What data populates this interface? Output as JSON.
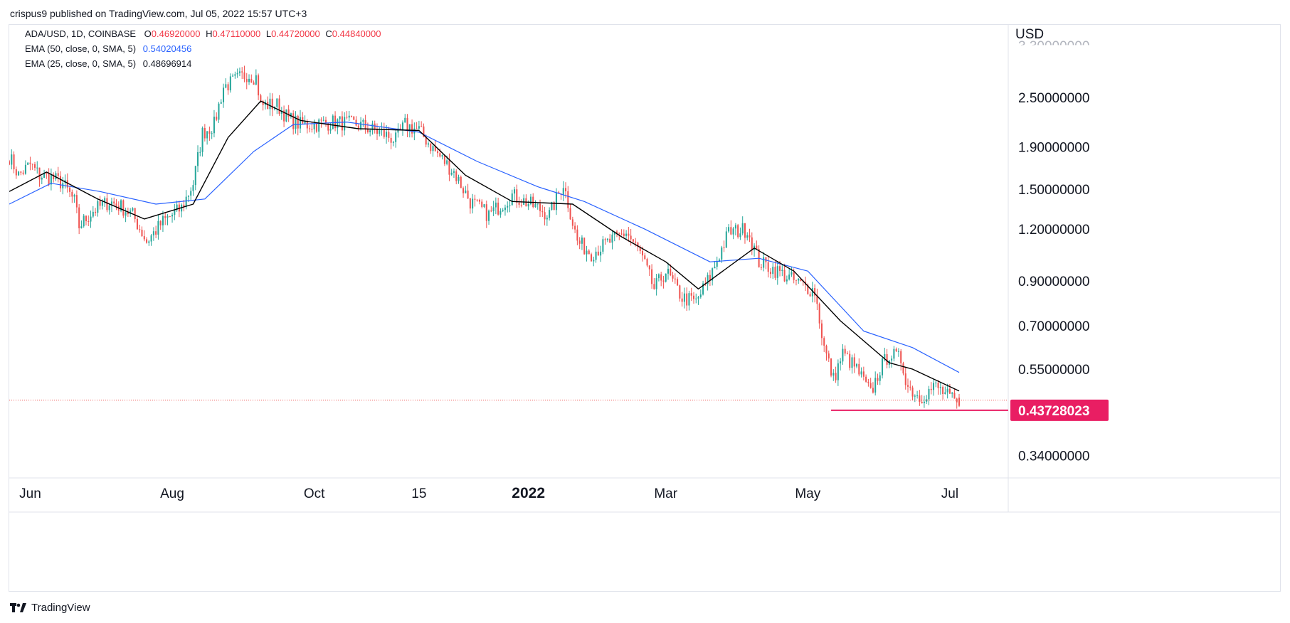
{
  "header": {
    "publisher": "crispus9 published on TradingView.com, Jul 05, 2022 15:57 UTC+3"
  },
  "legend": {
    "symbol": "ADA/USD, 1D, COINBASE",
    "open_label": "O",
    "open": "0.46920000",
    "high_label": "H",
    "high": "0.47110000",
    "low_label": "L",
    "low": "0.44720000",
    "close_label": "C",
    "close": "0.44840000",
    "ema50_label": "EMA (50, close, 0, SMA, 5)",
    "ema50_value": "0.54020456",
    "ema25_label": "EMA (25, close, 0, SMA, 5)",
    "ema25_value": "0.48696914"
  },
  "footer": {
    "brand": "TradingView"
  },
  "colors": {
    "up": "#26a69a",
    "down": "#ef5350",
    "ema50": "#2962ff",
    "ema25": "#000000",
    "support": "#e91e63",
    "price_label_bg": "#e91e63"
  },
  "chart_data": {
    "type": "candlestick",
    "title": "ADA/USD, 1D, COINBASE",
    "currency": "USD",
    "y_scale": "log",
    "ylim": [
      0.3,
      3.3
    ],
    "y_ticks": [
      "0.34000000",
      "0.55000000",
      "0.70000000",
      "0.90000000",
      "1.20000000",
      "1.50000000",
      "1.90000000",
      "2.50000000"
    ],
    "y_tick_values": [
      0.34,
      0.55,
      0.7,
      0.9,
      1.2,
      1.5,
      1.9,
      2.5
    ],
    "x_range": [
      "2021-05-23",
      "2022-07-05"
    ],
    "x_ticks": [
      {
        "label": "Jun",
        "date": "2021-06-01",
        "bold": false
      },
      {
        "label": "Aug",
        "date": "2021-08-01",
        "bold": false
      },
      {
        "label": "Oct",
        "date": "2021-10-01",
        "bold": false
      },
      {
        "label": "15",
        "date": "2021-11-15",
        "bold": false
      },
      {
        "label": "2022",
        "date": "2022-01-01",
        "bold": true
      },
      {
        "label": "Mar",
        "date": "2022-03-01",
        "bold": false
      },
      {
        "label": "May",
        "date": "2022-05-01",
        "bold": false
      },
      {
        "label": "Jul",
        "date": "2022-07-01",
        "bold": false
      }
    ],
    "series_daily_close_anchors": [
      [
        "2021-05-23",
        1.8
      ],
      [
        "2021-05-27",
        1.62
      ],
      [
        "2021-06-01",
        1.72
      ],
      [
        "2021-06-05",
        1.62
      ],
      [
        "2021-06-10",
        1.6
      ],
      [
        "2021-06-15",
        1.55
      ],
      [
        "2021-06-20",
        1.4
      ],
      [
        "2021-06-22",
        1.22
      ],
      [
        "2021-06-28",
        1.33
      ],
      [
        "2021-07-05",
        1.4
      ],
      [
        "2021-07-10",
        1.36
      ],
      [
        "2021-07-15",
        1.3
      ],
      [
        "2021-07-21",
        1.12
      ],
      [
        "2021-07-28",
        1.25
      ],
      [
        "2021-08-05",
        1.35
      ],
      [
        "2021-08-10",
        1.55
      ],
      [
        "2021-08-14",
        2.05
      ],
      [
        "2021-08-19",
        2.15
      ],
      [
        "2021-08-23",
        2.65
      ],
      [
        "2021-09-02",
        2.85
      ],
      [
        "2021-09-06",
        2.8
      ],
      [
        "2021-09-08",
        2.4
      ],
      [
        "2021-09-15",
        2.4
      ],
      [
        "2021-09-20",
        2.22
      ],
      [
        "2021-09-25",
        2.15
      ],
      [
        "2021-10-01",
        2.15
      ],
      [
        "2021-10-10",
        2.18
      ],
      [
        "2021-10-20",
        2.15
      ],
      [
        "2021-10-30",
        2.05
      ],
      [
        "2021-11-05",
        1.97
      ],
      [
        "2021-11-09",
        2.15
      ],
      [
        "2021-11-15",
        2.08
      ],
      [
        "2021-11-22",
        1.85
      ],
      [
        "2021-11-30",
        1.65
      ],
      [
        "2021-12-07",
        1.4
      ],
      [
        "2021-12-15",
        1.3
      ],
      [
        "2021-12-25",
        1.45
      ],
      [
        "2022-01-05",
        1.35
      ],
      [
        "2022-01-10",
        1.3
      ],
      [
        "2022-01-16",
        1.55
      ],
      [
        "2022-01-22",
        1.12
      ],
      [
        "2022-01-28",
        1.05
      ],
      [
        "2022-02-05",
        1.12
      ],
      [
        "2022-02-12",
        1.18
      ],
      [
        "2022-02-18",
        1.05
      ],
      [
        "2022-02-24",
        0.86
      ],
      [
        "2022-03-01",
        0.95
      ],
      [
        "2022-03-08",
        0.82
      ],
      [
        "2022-03-14",
        0.8
      ],
      [
        "2022-03-20",
        0.92
      ],
      [
        "2022-03-28",
        1.18
      ],
      [
        "2022-04-05",
        1.2
      ],
      [
        "2022-04-10",
        1.0
      ],
      [
        "2022-04-18",
        0.95
      ],
      [
        "2022-04-25",
        0.9
      ],
      [
        "2022-05-04",
        0.85
      ],
      [
        "2022-05-08",
        0.62
      ],
      [
        "2022-05-12",
        0.52
      ],
      [
        "2022-05-16",
        0.6
      ],
      [
        "2022-05-22",
        0.55
      ],
      [
        "2022-05-28",
        0.48
      ],
      [
        "2022-06-01",
        0.55
      ],
      [
        "2022-06-05",
        0.6
      ],
      [
        "2022-06-10",
        0.58
      ],
      [
        "2022-06-13",
        0.5
      ],
      [
        "2022-06-18",
        0.47
      ],
      [
        "2022-06-25",
        0.5
      ],
      [
        "2022-07-05",
        0.448
      ]
    ],
    "ema50_anchors": [
      [
        "2021-05-23",
        1.38
      ],
      [
        "2021-06-10",
        1.55
      ],
      [
        "2021-07-01",
        1.48
      ],
      [
        "2021-07-25",
        1.38
      ],
      [
        "2021-08-15",
        1.42
      ],
      [
        "2021-09-05",
        1.85
      ],
      [
        "2021-09-22",
        2.15
      ],
      [
        "2021-10-15",
        2.18
      ],
      [
        "2021-11-15",
        2.06
      ],
      [
        "2021-12-10",
        1.75
      ],
      [
        "2022-01-05",
        1.52
      ],
      [
        "2022-01-25",
        1.4
      ],
      [
        "2022-02-20",
        1.2
      ],
      [
        "2022-03-20",
        1.0
      ],
      [
        "2022-04-10",
        1.02
      ],
      [
        "2022-05-01",
        0.95
      ],
      [
        "2022-05-25",
        0.68
      ],
      [
        "2022-06-15",
        0.62
      ],
      [
        "2022-07-05",
        0.54
      ]
    ],
    "ema25_anchors": [
      [
        "2021-05-23",
        1.48
      ],
      [
        "2021-06-08",
        1.65
      ],
      [
        "2021-06-30",
        1.42
      ],
      [
        "2021-07-20",
        1.27
      ],
      [
        "2021-08-10",
        1.38
      ],
      [
        "2021-08-25",
        2.0
      ],
      [
        "2021-09-08",
        2.45
      ],
      [
        "2021-09-25",
        2.2
      ],
      [
        "2021-10-20",
        2.1
      ],
      [
        "2021-11-15",
        2.08
      ],
      [
        "2021-12-05",
        1.62
      ],
      [
        "2021-12-25",
        1.4
      ],
      [
        "2022-01-20",
        1.38
      ],
      [
        "2022-02-10",
        1.15
      ],
      [
        "2022-03-01",
        1.0
      ],
      [
        "2022-03-15",
        0.86
      ],
      [
        "2022-04-08",
        1.08
      ],
      [
        "2022-04-25",
        0.95
      ],
      [
        "2022-05-15",
        0.72
      ],
      [
        "2022-06-05",
        0.57
      ],
      [
        "2022-06-15",
        0.55
      ],
      [
        "2022-07-05",
        0.487
      ]
    ],
    "current_price_line": 0.4484,
    "support_line": {
      "value": 0.43728023,
      "label": "0.43728023",
      "from": "2022-05-11",
      "to": "2022-07-05"
    }
  }
}
